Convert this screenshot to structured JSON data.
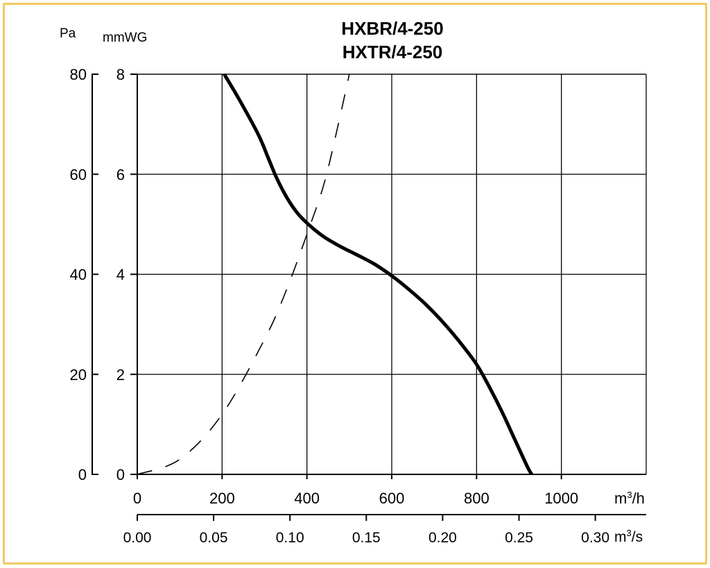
{
  "colors": {
    "border": "#f2c962",
    "grid": "#000000",
    "curve": "#000000"
  },
  "chart_data": {
    "type": "line",
    "title_lines": [
      "HXBR/4-250",
      "HXTR/4-250"
    ],
    "y_left_label": "Pa",
    "y_right_label": "mmWG",
    "x_top_unit": "m³/h",
    "x_bottom_unit": "m³/s",
    "x_flow_ticks": [
      "0",
      "200",
      "400",
      "600",
      "800",
      "1000"
    ],
    "x_flow_tick_values": [
      0,
      200,
      400,
      600,
      800,
      1000
    ],
    "x_si_ticks": [
      "0.00",
      "0.05",
      "0.10",
      "0.15",
      "0.20",
      "0.25",
      "0.30"
    ],
    "x_si_tick_values": [
      0,
      0.05,
      0.1,
      0.15,
      0.2,
      0.25,
      0.3
    ],
    "y_pa_ticks": [
      "0",
      "20",
      "40",
      "60",
      "80"
    ],
    "y_pa_tick_values": [
      0,
      20,
      40,
      60,
      80
    ],
    "y_mmwg_ticks": [
      "0",
      "2",
      "4",
      "6",
      "8"
    ],
    "y_mmwg_tick_values": [
      0,
      2,
      4,
      6,
      8
    ],
    "xlim": [
      0,
      1200
    ],
    "ylim_mmwg": [
      0,
      8
    ],
    "grid": true,
    "series": [
      {
        "style": "solid",
        "x": [
          205,
          240,
          285,
          310,
          330,
          355,
          380,
          410,
          440,
          480,
          520,
          560,
          600,
          640,
          680,
          720,
          760,
          800,
          830,
          860,
          890,
          920,
          930
        ],
        "y": [
          8.0,
          7.5,
          6.8,
          6.3,
          5.9,
          5.5,
          5.2,
          4.95,
          4.75,
          4.55,
          4.38,
          4.2,
          3.97,
          3.7,
          3.4,
          3.05,
          2.65,
          2.2,
          1.75,
          1.25,
          0.7,
          0.15,
          0.0
        ]
      },
      {
        "style": "dashed",
        "x": [
          0,
          100,
          200,
          300,
          350,
          400,
          440,
          470,
          500
        ],
        "y": [
          0.0,
          0.3,
          1.2,
          2.7,
          3.65,
          4.8,
          5.8,
          6.85,
          8.0
        ]
      }
    ]
  }
}
